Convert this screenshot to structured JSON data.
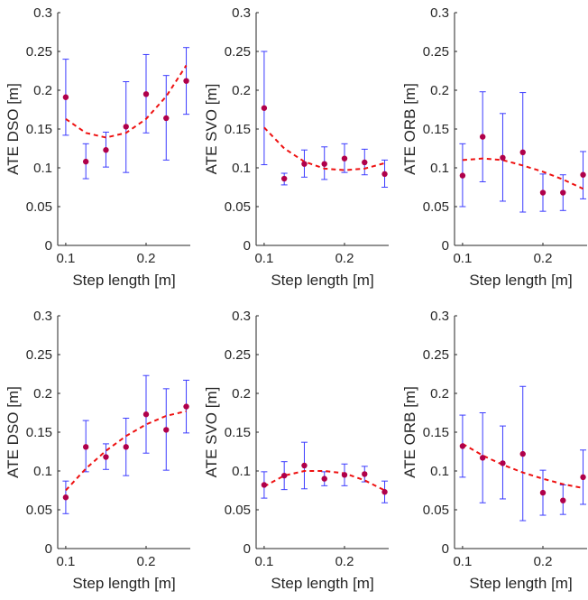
{
  "figure": {
    "colors": {
      "errorbar": "#3b3bff",
      "point": "#b0004a",
      "fit": "#ee1111",
      "axis": "#262626"
    }
  },
  "chart_data": [
    {
      "type": "scatter",
      "xlabel": "Step length [m]",
      "ylabel": "ATE DSO [m]",
      "xticks": [
        "0.1",
        "0.2"
      ],
      "xlim": [
        0.09,
        0.255
      ],
      "yticks": [
        "0",
        "0.05",
        "0.1",
        "0.15",
        "0.2",
        "0.25",
        "0.3"
      ],
      "ylim": [
        0,
        0.3
      ],
      "x": [
        0.1,
        0.125,
        0.15,
        0.175,
        0.2,
        0.225,
        0.25
      ],
      "y": [
        0.191,
        0.108,
        0.123,
        0.153,
        0.195,
        0.164,
        0.212
      ],
      "err_low": [
        0.142,
        0.086,
        0.101,
        0.094,
        0.145,
        0.11,
        0.169
      ],
      "err_high": [
        0.24,
        0.131,
        0.146,
        0.211,
        0.246,
        0.219,
        0.255
      ],
      "fit": {
        "x": [
          0.1,
          0.125,
          0.15,
          0.175,
          0.2,
          0.225,
          0.25
        ],
        "y": [
          0.163,
          0.145,
          0.139,
          0.145,
          0.163,
          0.192,
          0.232
        ]
      },
      "grid": false
    },
    {
      "type": "scatter",
      "xlabel": "Step length [m]",
      "ylabel": "ATE SVO [m]",
      "xticks": [
        "0.1",
        "0.2"
      ],
      "xlim": [
        0.09,
        0.255
      ],
      "yticks": [
        "0",
        "0.05",
        "0.1",
        "0.15",
        "0.2",
        "0.25",
        "0.3"
      ],
      "ylim": [
        0,
        0.3
      ],
      "x": [
        0.1,
        0.125,
        0.15,
        0.175,
        0.2,
        0.225,
        0.25
      ],
      "y": [
        0.177,
        0.086,
        0.105,
        0.105,
        0.112,
        0.107,
        0.092
      ],
      "err_low": [
        0.104,
        0.078,
        0.088,
        0.085,
        0.094,
        0.091,
        0.075
      ],
      "err_high": [
        0.25,
        0.093,
        0.123,
        0.127,
        0.131,
        0.124,
        0.11
      ],
      "fit": {
        "x": [
          0.1,
          0.125,
          0.15,
          0.175,
          0.2,
          0.225,
          0.25
        ],
        "y": [
          0.152,
          0.125,
          0.108,
          0.099,
          0.097,
          0.099,
          0.106
        ]
      },
      "grid": false
    },
    {
      "type": "scatter",
      "xlabel": "Step length [m]",
      "ylabel": "ATE ORB [m]",
      "xticks": [
        "0.1",
        "0.2"
      ],
      "xlim": [
        0.09,
        0.255
      ],
      "yticks": [
        "0",
        "0.05",
        "0.1",
        "0.15",
        "0.2",
        "0.25",
        "0.3"
      ],
      "ylim": [
        0,
        0.3
      ],
      "x": [
        0.1,
        0.125,
        0.15,
        0.175,
        0.2,
        0.225,
        0.25
      ],
      "y": [
        0.09,
        0.14,
        0.113,
        0.12,
        0.068,
        0.068,
        0.091
      ],
      "err_low": [
        0.05,
        0.082,
        0.057,
        0.043,
        0.044,
        0.045,
        0.06
      ],
      "err_high": [
        0.131,
        0.198,
        0.17,
        0.197,
        0.092,
        0.091,
        0.121
      ],
      "fit": {
        "x": [
          0.1,
          0.125,
          0.15,
          0.175,
          0.2,
          0.225,
          0.25
        ],
        "y": [
          0.11,
          0.112,
          0.11,
          0.103,
          0.095,
          0.085,
          0.073
        ]
      },
      "grid": false
    },
    {
      "type": "scatter",
      "xlabel": "Step length [m]",
      "ylabel": "ATE DSO [m]",
      "xticks": [
        "0.1",
        "0.2"
      ],
      "xlim": [
        0.09,
        0.255
      ],
      "yticks": [
        "0",
        "0.05",
        "0.1",
        "0.15",
        "0.2",
        "0.25",
        "0.3"
      ],
      "ylim": [
        0,
        0.3
      ],
      "x": [
        0.1,
        0.125,
        0.15,
        0.175,
        0.2,
        0.225,
        0.25
      ],
      "y": [
        0.066,
        0.131,
        0.118,
        0.131,
        0.173,
        0.153,
        0.183
      ],
      "err_low": [
        0.045,
        0.099,
        0.102,
        0.094,
        0.123,
        0.101,
        0.149
      ],
      "err_high": [
        0.087,
        0.165,
        0.135,
        0.168,
        0.223,
        0.206,
        0.217
      ],
      "fit": {
        "x": [
          0.1,
          0.125,
          0.15,
          0.175,
          0.2,
          0.225,
          0.25
        ],
        "y": [
          0.075,
          0.103,
          0.126,
          0.145,
          0.16,
          0.171,
          0.177
        ]
      },
      "grid": false
    },
    {
      "type": "scatter",
      "xlabel": "Step length [m]",
      "ylabel": "ATE SVO [m]",
      "xticks": [
        "0.1",
        "0.2"
      ],
      "xlim": [
        0.09,
        0.255
      ],
      "yticks": [
        "0",
        "0.05",
        "0.1",
        "0.15",
        "0.2",
        "0.25",
        "0.3"
      ],
      "ylim": [
        0,
        0.3
      ],
      "x": [
        0.1,
        0.125,
        0.15,
        0.175,
        0.2,
        0.225,
        0.25
      ],
      "y": [
        0.082,
        0.094,
        0.107,
        0.09,
        0.095,
        0.096,
        0.073
      ],
      "err_low": [
        0.065,
        0.076,
        0.077,
        0.081,
        0.081,
        0.086,
        0.059
      ],
      "err_high": [
        0.099,
        0.112,
        0.137,
        0.099,
        0.109,
        0.106,
        0.087
      ],
      "fit": {
        "x": [
          0.1,
          0.125,
          0.15,
          0.175,
          0.2,
          0.225,
          0.25
        ],
        "y": [
          0.08,
          0.094,
          0.1,
          0.1,
          0.097,
          0.088,
          0.075
        ]
      },
      "grid": false
    },
    {
      "type": "scatter",
      "xlabel": "Step length [m]",
      "ylabel": "ATE ORB [m]",
      "xticks": [
        "0.1",
        "0.2"
      ],
      "xlim": [
        0.09,
        0.255
      ],
      "yticks": [
        "0",
        "0.05",
        "0.1",
        "0.15",
        "0.2",
        "0.25",
        "0.3"
      ],
      "ylim": [
        0,
        0.3
      ],
      "x": [
        0.1,
        0.125,
        0.15,
        0.175,
        0.2,
        0.225,
        0.25
      ],
      "y": [
        0.132,
        0.117,
        0.11,
        0.122,
        0.072,
        0.062,
        0.092
      ],
      "err_low": [
        0.092,
        0.059,
        0.064,
        0.036,
        0.043,
        0.044,
        0.057
      ],
      "err_high": [
        0.172,
        0.175,
        0.158,
        0.209,
        0.101,
        0.082,
        0.127
      ],
      "fit": {
        "x": [
          0.1,
          0.125,
          0.15,
          0.175,
          0.2,
          0.225,
          0.25
        ],
        "y": [
          0.135,
          0.12,
          0.108,
          0.098,
          0.09,
          0.083,
          0.078
        ]
      },
      "grid": false
    }
  ]
}
